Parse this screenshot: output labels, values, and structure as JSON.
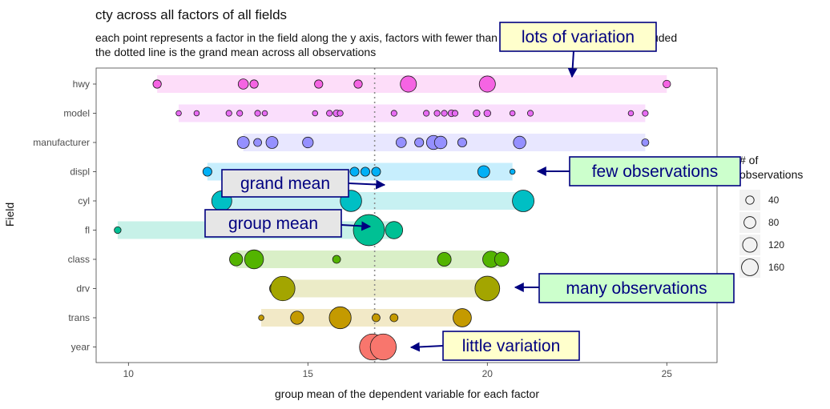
{
  "chart_data": {
    "type": "scatter",
    "title": "cty across all factors of all fields",
    "subtitle_lines": [
      "each point represents a factor in the field along the y axis, factors with fewer than 5 observations have been excluded",
      "the dotted line is the grand mean across all observations"
    ],
    "xlabel": "group mean of the dependent variable for each factor",
    "ylabel": "Field",
    "xlim": [
      9.1,
      26.4
    ],
    "x_ticks": [
      10,
      15,
      20,
      25
    ],
    "grand_mean": 16.86,
    "fields": [
      "hwy",
      "model",
      "manufacturer",
      "displ",
      "cyl",
      "fl",
      "class",
      "drv",
      "trans",
      "year"
    ],
    "series": [
      {
        "field": "hwy",
        "color": "#f564e3",
        "points": [
          {
            "x": 10.8,
            "n": 12
          },
          {
            "x": 13.2,
            "n": 18
          },
          {
            "x": 13.5,
            "n": 12
          },
          {
            "x": 15.3,
            "n": 12
          },
          {
            "x": 16.4,
            "n": 12
          },
          {
            "x": 17.8,
            "n": 45
          },
          {
            "x": 20.0,
            "n": 45
          },
          {
            "x": 25.0,
            "n": 10
          }
        ]
      },
      {
        "field": "model",
        "color": "#e76bf3",
        "points": [
          {
            "x": 11.4,
            "n": 5
          },
          {
            "x": 11.9,
            "n": 5
          },
          {
            "x": 12.8,
            "n": 6
          },
          {
            "x": 13.1,
            "n": 6
          },
          {
            "x": 13.6,
            "n": 6
          },
          {
            "x": 13.8,
            "n": 5
          },
          {
            "x": 15.2,
            "n": 5
          },
          {
            "x": 15.6,
            "n": 6
          },
          {
            "x": 15.8,
            "n": 8
          },
          {
            "x": 15.9,
            "n": 6
          },
          {
            "x": 17.4,
            "n": 6
          },
          {
            "x": 18.3,
            "n": 6
          },
          {
            "x": 18.6,
            "n": 6
          },
          {
            "x": 18.8,
            "n": 6
          },
          {
            "x": 19.0,
            "n": 8
          },
          {
            "x": 19.1,
            "n": 6
          },
          {
            "x": 19.7,
            "n": 8
          },
          {
            "x": 20.0,
            "n": 8
          },
          {
            "x": 20.7,
            "n": 5
          },
          {
            "x": 21.2,
            "n": 6
          },
          {
            "x": 24.0,
            "n": 5
          },
          {
            "x": 24.4,
            "n": 6
          }
        ]
      },
      {
        "field": "manufacturer",
        "color": "#9590ff",
        "points": [
          {
            "x": 13.2,
            "n": 25
          },
          {
            "x": 13.6,
            "n": 11
          },
          {
            "x": 14.0,
            "n": 25
          },
          {
            "x": 15.0,
            "n": 20
          },
          {
            "x": 17.6,
            "n": 18
          },
          {
            "x": 18.1,
            "n": 14
          },
          {
            "x": 18.5,
            "n": 34
          },
          {
            "x": 18.7,
            "n": 27
          },
          {
            "x": 19.3,
            "n": 14
          },
          {
            "x": 20.9,
            "n": 27
          },
          {
            "x": 24.4,
            "n": 9
          }
        ]
      },
      {
        "field": "displ",
        "color": "#00b0f6",
        "points": [
          {
            "x": 12.2,
            "n": 14
          },
          {
            "x": 16.3,
            "n": 14
          },
          {
            "x": 16.6,
            "n": 14
          },
          {
            "x": 16.9,
            "n": 14
          },
          {
            "x": 19.9,
            "n": 25
          },
          {
            "x": 20.7,
            "n": 5
          }
        ]
      },
      {
        "field": "cyl",
        "color": "#00bfc4",
        "points": [
          {
            "x": 12.6,
            "n": 70
          },
          {
            "x": 16.2,
            "n": 79
          },
          {
            "x": 21.0,
            "n": 81
          }
        ]
      },
      {
        "field": "fl",
        "color": "#00c094",
        "points": [
          {
            "x": 9.7,
            "n": 8
          },
          {
            "x": 16.7,
            "n": 168
          },
          {
            "x": 17.4,
            "n": 52
          }
        ]
      },
      {
        "field": "class",
        "color": "#53b400",
        "points": [
          {
            "x": 13.0,
            "n": 30
          },
          {
            "x": 13.5,
            "n": 62
          },
          {
            "x": 15.8,
            "n": 11
          },
          {
            "x": 18.8,
            "n": 33
          },
          {
            "x": 20.1,
            "n": 47
          },
          {
            "x": 20.4,
            "n": 35
          }
        ]
      },
      {
        "field": "drv",
        "color": "#a3a500",
        "points": [
          {
            "x": 14.1,
            "n": 25
          },
          {
            "x": 14.3,
            "n": 103
          },
          {
            "x": 20.0,
            "n": 106
          }
        ]
      },
      {
        "field": "trans",
        "color": "#c49a00",
        "points": [
          {
            "x": 13.7,
            "n": 5
          },
          {
            "x": 14.7,
            "n": 30
          },
          {
            "x": 15.9,
            "n": 83
          },
          {
            "x": 16.9,
            "n": 11
          },
          {
            "x": 17.4,
            "n": 11
          },
          {
            "x": 19.3,
            "n": 58
          }
        ]
      },
      {
        "field": "year",
        "color": "#f8766d",
        "points": [
          {
            "x": 16.8,
            "n": 117
          },
          {
            "x": 17.1,
            "n": 117
          }
        ]
      }
    ],
    "size_legend": {
      "title_lines": [
        "# of",
        "observations"
      ],
      "values": [
        40,
        80,
        120,
        160
      ]
    },
    "annotations": [
      {
        "text": "lots of variation",
        "fill": "#ffffcc"
      },
      {
        "text": "few observations",
        "fill": "#ccffcc"
      },
      {
        "text": "grand mean",
        "fill": "#e6e6e6"
      },
      {
        "text": "group mean",
        "fill": "#e6e6e6"
      },
      {
        "text": "many observations",
        "fill": "#ccffcc"
      },
      {
        "text": "little variation",
        "fill": "#ffffcc"
      }
    ],
    "grid": false,
    "legend_position": "right"
  }
}
